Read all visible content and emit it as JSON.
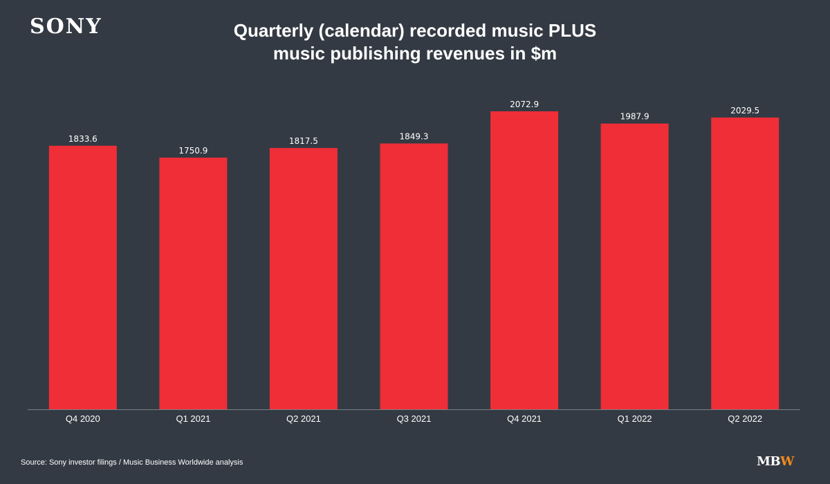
{
  "header": {
    "logo_text": "SONY",
    "title_line1": "Quarterly (calendar) recorded music PLUS",
    "title_line2": "music publishing revenues in $m"
  },
  "footer": {
    "source": "Source: Sony investor filings / Music Business Worldwide analysis",
    "brand_part1": "MB",
    "brand_part2": "W"
  },
  "colors": {
    "background": "#343a43",
    "bar": "#ef2e38",
    "text": "#ffffff",
    "axis": "#7a7f86",
    "brand_accent": "#f28a1a"
  },
  "chart_data": {
    "type": "bar",
    "title": "Quarterly (calendar) recorded music PLUS music publishing revenues in $m",
    "categories": [
      "Q4 2020",
      "Q1 2021",
      "Q2 2021",
      "Q3 2021",
      "Q4 2021",
      "Q1 2022",
      "Q2 2022"
    ],
    "values": [
      1833.6,
      1750.9,
      1817.5,
      1849.3,
      2072.9,
      1987.9,
      2029.5
    ],
    "value_labels": [
      "1833.6",
      "1750.9",
      "1817.5",
      "1849.3",
      "2072.9",
      "1987.9",
      "2029.5"
    ],
    "ylim": [
      0,
      2300
    ],
    "grid": false,
    "legend": "none"
  }
}
